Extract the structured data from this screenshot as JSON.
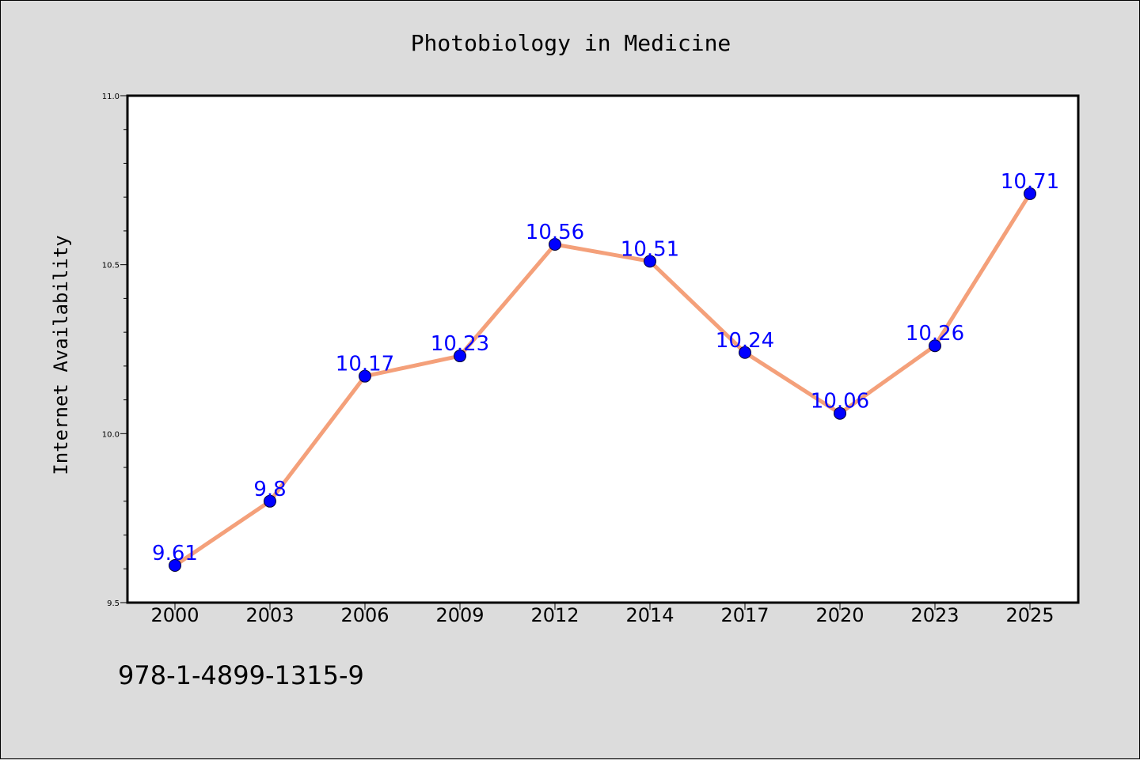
{
  "chart_data": {
    "type": "line",
    "title": "Photobiology in Medicine",
    "xlabel": "",
    "ylabel": "Internet Availability",
    "categories": [
      "2000",
      "2003",
      "2006",
      "2009",
      "2012",
      "2014",
      "2017",
      "2020",
      "2023",
      "2025"
    ],
    "series": [
      {
        "values": [
          9.61,
          9.8,
          10.17,
          10.23,
          10.56,
          10.51,
          10.24,
          10.06,
          10.26,
          10.71
        ],
        "data_labels": [
          "9.61",
          "9.8",
          "10.17",
          "10.23",
          "10.56",
          "10.51",
          "10.24",
          "10.06",
          "10.26",
          "10.71"
        ],
        "line_color": "#f4a07a",
        "marker_color": "#0000ff",
        "label_color": "#0000ff"
      }
    ],
    "ylim": [
      9.5,
      11.0
    ],
    "yticks": [
      "9.5",
      "10.0",
      "10.5",
      "11.0"
    ],
    "grid": false,
    "legend": "none"
  },
  "footer": {
    "isbn": "978-1-4899-1315-9"
  },
  "colors": {
    "background": "#dcdcdc",
    "plot_background": "#ffffff"
  }
}
